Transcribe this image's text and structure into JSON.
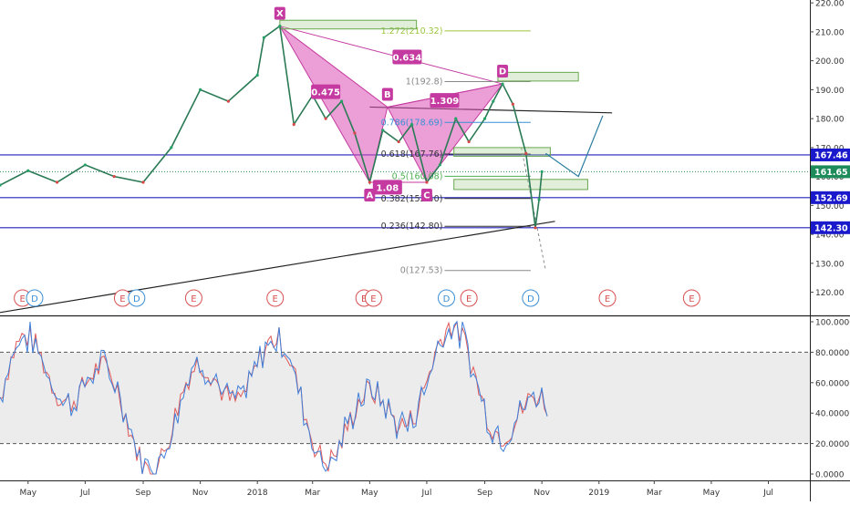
{
  "chart_data": [
    {
      "type": "line",
      "title": "",
      "candles": "monthly_approx",
      "price_series": {
        "name": "",
        "x": [
          "2017-04-01",
          "2017-05-01",
          "2017-06-01",
          "2017-07-01",
          "2017-08-01",
          "2017-09-01",
          "2017-10-01",
          "2017-11-01",
          "2017-12-01",
          "2018-01-01",
          "2018-01-08",
          "2018-01-25",
          "2018-02-09",
          "2018-03-01",
          "2018-03-15",
          "2018-04-01",
          "2018-04-15",
          "2018-05-01",
          "2018-05-15",
          "2018-06-01",
          "2018-06-15",
          "2018-07-01",
          "2018-07-15",
          "2018-08-01",
          "2018-08-15",
          "2018-09-01",
          "2018-09-10",
          "2018-09-20",
          "2018-10-01",
          "2018-10-15",
          "2018-10-25",
          "2018-10-29",
          "2018-11-01"
        ],
        "y": [
          157,
          162,
          158,
          164,
          160,
          158,
          170,
          190,
          186,
          195,
          208,
          212,
          178,
          188,
          180,
          186,
          175,
          158,
          176,
          172,
          178,
          158,
          164,
          180,
          172,
          180,
          186,
          192,
          185,
          168,
          142.3,
          152,
          161.65
        ]
      },
      "y_axis": {
        "ylim": [
          112,
          221
        ],
        "ticks": [
          "220.00",
          "210.00",
          "200.00",
          "190.00",
          "180.00",
          "170.00",
          "160.00",
          "150.00",
          "140.00",
          "130.00",
          "120.00"
        ]
      },
      "x_axis": {
        "ticks": [
          {
            "date": "2017-05-01",
            "label": "May"
          },
          {
            "date": "2017-07-01",
            "label": "Jul"
          },
          {
            "date": "2017-09-01",
            "label": "Sep"
          },
          {
            "date": "2017-11-01",
            "label": "Nov"
          },
          {
            "date": "2018-01-01",
            "label": "2018"
          },
          {
            "date": "2018-03-01",
            "label": "Mar"
          },
          {
            "date": "2018-05-01",
            "label": "May"
          },
          {
            "date": "2018-07-01",
            "label": "Jul"
          },
          {
            "date": "2018-09-01",
            "label": "Sep"
          },
          {
            "date": "2018-11-01",
            "label": "Nov"
          },
          {
            "date": "2019-01-01",
            "label": "2019"
          },
          {
            "date": "2019-03-01",
            "label": "Mar"
          },
          {
            "date": "2019-05-01",
            "label": "May"
          },
          {
            "date": "2019-07-01",
            "label": "Jul"
          }
        ]
      },
      "horizontal_levels": [
        {
          "value": 167.46,
          "label": "167.46"
        },
        {
          "value": 161.65,
          "label": "161.65"
        },
        {
          "value": 152.69,
          "label": "152.69"
        },
        {
          "value": 142.3,
          "label": "142.30"
        }
      ],
      "fib_levels": [
        {
          "ratio_label": "1.272(210.32)",
          "value": 210.32,
          "color": "#9bc53d"
        },
        {
          "ratio_label": "1(192.8)",
          "value": 192.8,
          "color": "#888888"
        },
        {
          "ratio_label": "0.786(178.69)",
          "value": 178.69,
          "color": "#3a8fd6"
        },
        {
          "ratio_label": "0.618(167.76)",
          "value": 167.76,
          "color": "#333333"
        },
        {
          "ratio_label": "0.5(160.08)",
          "value": 160.08,
          "color": "#4caf50"
        },
        {
          "ratio_label": "0.382(152.40)",
          "value": 152.4,
          "color": "#333333"
        },
        {
          "ratio_label": "0.236(142.80)",
          "value": 142.8,
          "color": "#333333"
        },
        {
          "ratio_label": "0(127.53)",
          "value": 127.53,
          "color": "#888888"
        }
      ],
      "harmonic_pattern": {
        "points": [
          {
            "label": "X",
            "date": "2018-01-25",
            "value": 212
          },
          {
            "label": "A",
            "date": "2018-05-01",
            "value": 158
          },
          {
            "label": "B",
            "date": "2018-05-20",
            "value": 184
          },
          {
            "label": "C",
            "date": "2018-07-01",
            "value": 158
          },
          {
            "label": "D",
            "date": "2018-09-20",
            "value": 192
          }
        ],
        "ratios": [
          {
            "label": "0.475"
          },
          {
            "label": "0.634"
          },
          {
            "label": "1.309"
          },
          {
            "label": "1.08"
          }
        ]
      },
      "events": [
        "E",
        "D",
        "E",
        "D",
        "E",
        "E",
        "E",
        "E",
        "D",
        "E",
        "D",
        "E",
        "E"
      ]
    },
    {
      "type": "line",
      "title": "",
      "y_axis": {
        "ylim": [
          -3,
          103
        ],
        "ticks": [
          "100.0000",
          "80.0000",
          "60.0000",
          "40.0000",
          "20.0000",
          "0.0000"
        ]
      },
      "bands": {
        "upper": 80,
        "lower": 20
      },
      "series": [
        {
          "name": "",
          "color": "#e05a5a"
        },
        {
          "name": "",
          "color": "#3f7fd9"
        }
      ]
    }
  ]
}
